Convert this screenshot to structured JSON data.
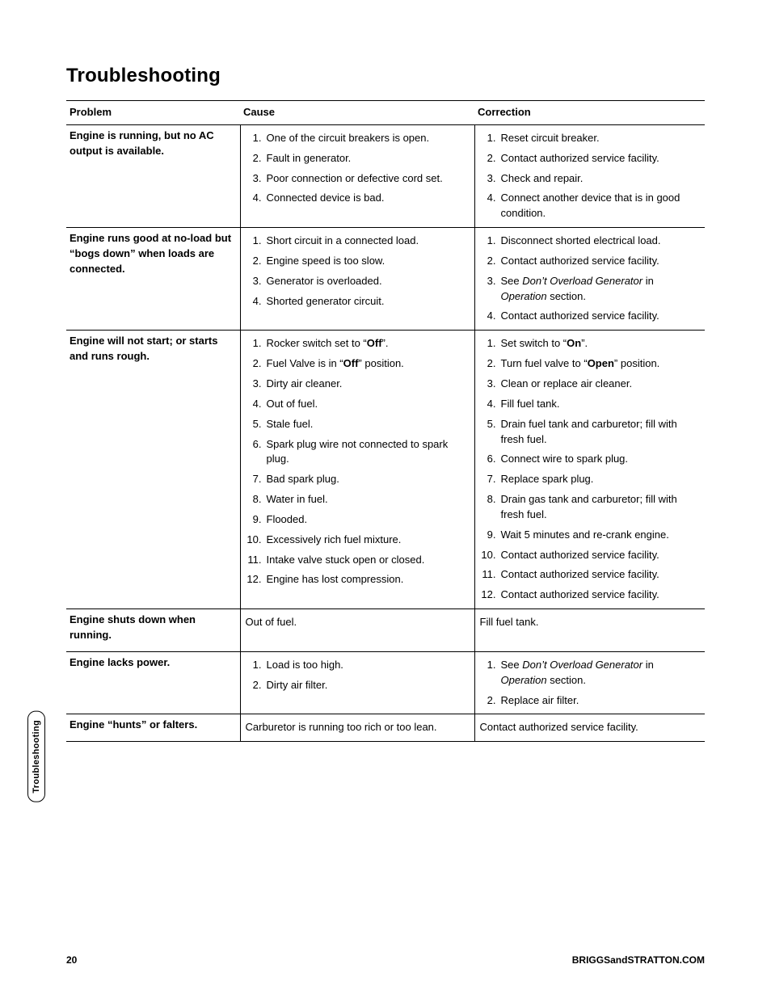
{
  "title": "Troubleshooting",
  "side_tab": "Troubleshooting",
  "footer": {
    "page": "20",
    "site": "BRIGGSandSTRATTON.COM"
  },
  "headers": {
    "problem": "Problem",
    "cause": "Cause",
    "correction": "Correction"
  },
  "rows": [
    {
      "problem": "Engine is running, but no AC output is available.",
      "cause": [
        {
          "n": "1.",
          "t": "One of the circuit breakers is open."
        },
        {
          "n": "2.",
          "t": "Fault in generator."
        },
        {
          "n": "3.",
          "t": "Poor connection or defective cord set."
        },
        {
          "n": "4.",
          "t": "Connected device is bad."
        }
      ],
      "correction": [
        {
          "n": "1.",
          "t": "Reset circuit breaker."
        },
        {
          "n": "2.",
          "t": "Contact authorized service facility."
        },
        {
          "n": "3.",
          "t": "Check and repair."
        },
        {
          "n": "4.",
          "t": "Connect another device that is in good condition."
        }
      ]
    },
    {
      "problem": "Engine runs good at no-load but “bogs down” when loads are connected.",
      "cause": [
        {
          "n": "1.",
          "t": "Short circuit in a connected load."
        },
        {
          "n": "2.",
          "t": "Engine speed is too slow."
        },
        {
          "n": "3.",
          "t": "Generator is overloaded."
        },
        {
          "n": "4.",
          "t": "Shorted generator circuit."
        }
      ],
      "correction": [
        {
          "n": "1.",
          "t": "Disconnect shorted electrical load."
        },
        {
          "n": "2.",
          "t": "Contact authorized service facility."
        },
        {
          "n": "3.",
          "html": "See <em class='italic'>Don’t Overload Generator</em> in <em class='italic'>Operation</em> section."
        },
        {
          "n": "4.",
          "t": "Contact authorized service facility."
        }
      ]
    },
    {
      "problem": "Engine will not start; or starts and runs rough.",
      "cause": [
        {
          "n": "1.",
          "html": "Rocker switch set to “<strong class='b'>Off</strong>”."
        },
        {
          "n": "2.",
          "html": "Fuel Valve is in “<strong class='b'>Off</strong>” position."
        },
        {
          "n": "3.",
          "t": "Dirty air cleaner."
        },
        {
          "n": "4.",
          "t": "Out of fuel."
        },
        {
          "n": "5.",
          "t": "Stale fuel."
        },
        {
          "n": "6.",
          "t": "Spark plug wire not connected to spark plug."
        },
        {
          "n": "7.",
          "t": "Bad spark plug."
        },
        {
          "n": "8.",
          "t": "Water in fuel."
        },
        {
          "n": "9.",
          "t": "Flooded."
        },
        {
          "n": "10.",
          "t": "Excessively rich fuel mixture."
        },
        {
          "n": "11.",
          "t": "Intake valve stuck open or closed."
        },
        {
          "n": "12.",
          "t": "Engine has lost compression."
        }
      ],
      "correction": [
        {
          "n": "1.",
          "html": "Set switch to “<strong class='b'>On</strong>”."
        },
        {
          "n": "2.",
          "html": "Turn fuel valve to “<strong class='b'>Open</strong>” position."
        },
        {
          "n": "3.",
          "t": "Clean or replace air cleaner."
        },
        {
          "n": "4.",
          "t": "Fill fuel tank."
        },
        {
          "n": "5.",
          "t": "Drain fuel tank and carburetor; fill with fresh fuel."
        },
        {
          "n": "6.",
          "t": "Connect wire to spark plug."
        },
        {
          "n": "7.",
          "t": "Replace spark plug."
        },
        {
          "n": "8.",
          "t": "Drain gas tank and carburetor; fill with fresh fuel."
        },
        {
          "n": "9.",
          "t": "Wait 5 minutes and re-crank engine."
        },
        {
          "n": "10.",
          "t": "Contact authorized service facility."
        },
        {
          "n": "11.",
          "t": "Contact authorized service facility."
        },
        {
          "n": "12.",
          "t": "Contact authorized service facility."
        }
      ]
    },
    {
      "problem": "Engine shuts down when running.",
      "cause_plain": "Out of fuel.",
      "correction_plain": "Fill fuel tank.",
      "tall": true
    },
    {
      "problem": "Engine lacks power.",
      "cause": [
        {
          "n": "1.",
          "t": "Load is too high."
        },
        {
          "n": "2.",
          "t": "Dirty air filter."
        }
      ],
      "correction": [
        {
          "n": "1.",
          "html": "See <em class='italic'>Don’t Overload Generator</em> in <em class='italic'>Operation</em> section."
        },
        {
          "n": "2.",
          "t": "Replace air filter."
        }
      ]
    },
    {
      "problem": "Engine “hunts” or falters.",
      "cause_plain": "Carburetor is running too rich or too lean.",
      "correction_plain": "Contact authorized service facility."
    }
  ]
}
